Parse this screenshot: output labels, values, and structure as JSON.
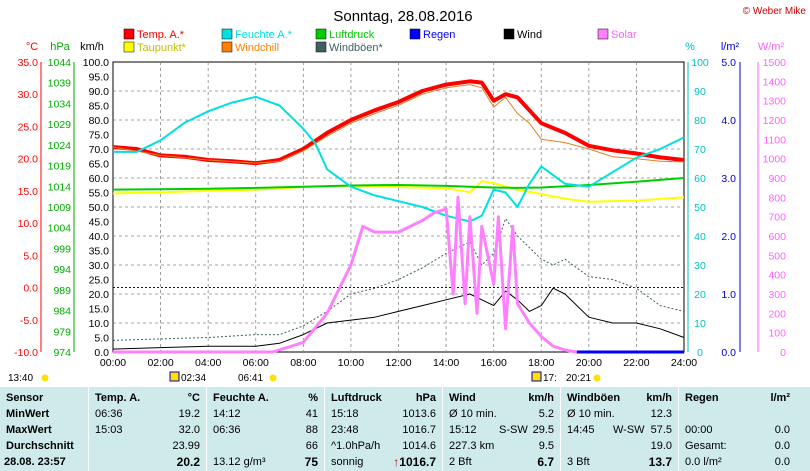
{
  "title": "Sonntag, 28.08.2016",
  "copyright": "© Weber Mike",
  "legend": [
    {
      "label": "Temp. A.*",
      "color": "#ff0000"
    },
    {
      "label": "Feuchte A.*",
      "color": "#00e0e0"
    },
    {
      "label": "Luftdruck",
      "color": "#00cc00"
    },
    {
      "label": "Regen",
      "color": "#0000ff"
    },
    {
      "label": "Wind",
      "color": "#000000"
    },
    {
      "label": "Solar",
      "color": "#ff80ff"
    },
    {
      "label": "Taupunkt*",
      "color": "#ffff00"
    },
    {
      "label": "Windchill",
      "color": "#ff8000"
    },
    {
      "label": "Windböen*",
      "color": "#406060"
    }
  ],
  "axis_units": {
    "temp": "°C",
    "press": "hPa",
    "wind": "km/h",
    "hum": "%",
    "rain": "l/m²",
    "solar": "W/m²"
  },
  "sun_times": {
    "left": "13:40",
    "sunrise": "02:34",
    "rise_time": "06:41",
    "sunset": "17:",
    "set_time": "20:21"
  },
  "chart_data": {
    "type": "line",
    "x_axis": {
      "range": [
        0,
        24
      ],
      "unit": "hours",
      "ticks": [
        "00:00",
        "02:00",
        "04:00",
        "06:00",
        "08:00",
        "10:00",
        "12:00",
        "14:00",
        "16:00",
        "18:00",
        "20:00",
        "22:00",
        "24:00"
      ]
    },
    "axes": {
      "temp": {
        "range": [
          -10,
          35
        ],
        "ticks": [
          "35.0",
          "30.0",
          "25.0",
          "20.0",
          "15.0",
          "10.0",
          "5.0",
          "0.0",
          "-5.0",
          "-10.0"
        ]
      },
      "press": {
        "range": [
          974,
          1044
        ],
        "ticks": [
          "1044",
          "1039",
          "1034",
          "1029",
          "1024",
          "1019",
          "1014",
          "1009",
          "1004",
          "999",
          "994",
          "989",
          "984",
          "979",
          "974"
        ]
      },
      "wind": {
        "range": [
          0,
          100
        ],
        "ticks": [
          "100.0",
          "95.0",
          "90.0",
          "85.0",
          "80.0",
          "75.0",
          "70.0",
          "65.0",
          "60.0",
          "55.0",
          "50.0",
          "45.0",
          "40.0",
          "35.0",
          "30.0",
          "25.0",
          "20.0",
          "15.0",
          "10.0",
          "5.0",
          "0.0"
        ]
      },
      "hum": {
        "range": [
          0,
          100
        ],
        "ticks": [
          "100",
          "90",
          "80",
          "70",
          "60",
          "50",
          "40",
          "30",
          "20",
          "10",
          "0"
        ]
      },
      "rain": {
        "range": [
          0,
          5
        ],
        "ticks": [
          "5.0",
          "4.0",
          "3.0",
          "2.0",
          "1.0",
          "0.0"
        ]
      },
      "solar": {
        "range": [
          0,
          1500
        ],
        "ticks": [
          "1500",
          "1400",
          "1300",
          "1200",
          "1100",
          "1000",
          "900",
          "800",
          "700",
          "600",
          "500",
          "400",
          "300",
          "200",
          "100",
          "0"
        ]
      }
    },
    "series": [
      {
        "name": "Temp. A.*",
        "axis": "temp",
        "color": "#ff0000",
        "width": 4,
        "points": [
          [
            0,
            21.8
          ],
          [
            1,
            21.5
          ],
          [
            2,
            20.5
          ],
          [
            3,
            20.3
          ],
          [
            4,
            19.8
          ],
          [
            5,
            19.6
          ],
          [
            6,
            19.3
          ],
          [
            7,
            19.8
          ],
          [
            8,
            21.5
          ],
          [
            9,
            24
          ],
          [
            10,
            26
          ],
          [
            11,
            27.5
          ],
          [
            12,
            28.8
          ],
          [
            13,
            30.5
          ],
          [
            14,
            31.5
          ],
          [
            15,
            32
          ],
          [
            15.5,
            31.8
          ],
          [
            16,
            29
          ],
          [
            16.5,
            30
          ],
          [
            17,
            29.5
          ],
          [
            17.5,
            27.5
          ],
          [
            18,
            25.5
          ],
          [
            19,
            24
          ],
          [
            20,
            22
          ],
          [
            21,
            21.3
          ],
          [
            22,
            20.8
          ],
          [
            23,
            20.2
          ],
          [
            24,
            19.8
          ]
        ]
      },
      {
        "name": "Windchill",
        "axis": "temp",
        "color": "#e08020",
        "width": 1,
        "points": [
          [
            0,
            21.8
          ],
          [
            2,
            20.5
          ],
          [
            4,
            19.8
          ],
          [
            6,
            19.3
          ],
          [
            7,
            19.6
          ],
          [
            8,
            21.2
          ],
          [
            9,
            23.5
          ],
          [
            10,
            25.5
          ],
          [
            11,
            27
          ],
          [
            12,
            28.3
          ],
          [
            13,
            30
          ],
          [
            14,
            31
          ],
          [
            15,
            31.5
          ],
          [
            15.5,
            31
          ],
          [
            16,
            28
          ],
          [
            16.5,
            29.5
          ],
          [
            17,
            27
          ],
          [
            17.5,
            25.5
          ],
          [
            18,
            23
          ],
          [
            19,
            22.5
          ],
          [
            20,
            21.5
          ],
          [
            21,
            20.3
          ],
          [
            22,
            20
          ],
          [
            23,
            19.6
          ],
          [
            24,
            19.5
          ]
        ]
      },
      {
        "name": "Taupunkt*",
        "axis": "temp",
        "color": "#ffff00",
        "width": 2,
        "points": [
          [
            0,
            14.6
          ],
          [
            2,
            14.8
          ],
          [
            4,
            15.0
          ],
          [
            6,
            15.2
          ],
          [
            8,
            15.6
          ],
          [
            10,
            15.8
          ],
          [
            12,
            15.6
          ],
          [
            14,
            15.4
          ],
          [
            15,
            14.8
          ],
          [
            15.5,
            16.5
          ],
          [
            16,
            16.2
          ],
          [
            17,
            15.2
          ],
          [
            18,
            14.5
          ],
          [
            19,
            13.8
          ],
          [
            20,
            13.3
          ],
          [
            22,
            13.5
          ],
          [
            24,
            14.0
          ]
        ]
      },
      {
        "name": "Luftdruck",
        "axis": "press",
        "color": "#00cc00",
        "width": 2,
        "points": [
          [
            0,
            1013.2
          ],
          [
            2,
            1013.3
          ],
          [
            4,
            1013.4
          ],
          [
            6,
            1013.6
          ],
          [
            8,
            1013.9
          ],
          [
            10,
            1014.2
          ],
          [
            12,
            1014.3
          ],
          [
            14,
            1014.1
          ],
          [
            15,
            1013.9
          ],
          [
            16,
            1013.7
          ],
          [
            17,
            1013.6
          ],
          [
            18,
            1013.7
          ],
          [
            20,
            1014.3
          ],
          [
            22,
            1015.1
          ],
          [
            24,
            1016.0
          ]
        ]
      },
      {
        "name": "Feuchte A.*",
        "axis": "hum",
        "color": "#00e0e0",
        "width": 2,
        "points": [
          [
            0,
            69
          ],
          [
            1,
            69
          ],
          [
            2,
            73
          ],
          [
            3,
            79
          ],
          [
            4,
            83
          ],
          [
            5,
            86
          ],
          [
            6,
            88
          ],
          [
            7,
            85
          ],
          [
            8,
            77
          ],
          [
            8.5,
            72
          ],
          [
            9,
            63
          ],
          [
            10,
            57
          ],
          [
            11,
            54
          ],
          [
            12,
            52
          ],
          [
            13,
            50
          ],
          [
            14,
            47
          ],
          [
            15,
            45
          ],
          [
            15.5,
            47
          ],
          [
            16,
            56
          ],
          [
            16.5,
            55
          ],
          [
            17,
            50
          ],
          [
            17.5,
            58
          ],
          [
            18,
            64
          ],
          [
            19,
            58
          ],
          [
            20,
            57
          ],
          [
            21,
            62
          ],
          [
            22,
            67
          ],
          [
            23,
            70
          ],
          [
            24,
            74
          ]
        ]
      },
      {
        "name": "Windböen*",
        "axis": "wind",
        "color": "#406060",
        "width": 1,
        "dashed": true,
        "points": [
          [
            0,
            4
          ],
          [
            2,
            4.5
          ],
          [
            4,
            5
          ],
          [
            6,
            6
          ],
          [
            7,
            6
          ],
          [
            8,
            9
          ],
          [
            9,
            14
          ],
          [
            10,
            20
          ],
          [
            11,
            22
          ],
          [
            12,
            25
          ],
          [
            13,
            29
          ],
          [
            14,
            34
          ],
          [
            15,
            38
          ],
          [
            15.5,
            30
          ],
          [
            16,
            34
          ],
          [
            16.5,
            46
          ],
          [
            17,
            40
          ],
          [
            17.5,
            36
          ],
          [
            18,
            32
          ],
          [
            18.5,
            30
          ],
          [
            19,
            32
          ],
          [
            20,
            26
          ],
          [
            21,
            25
          ],
          [
            22,
            22
          ],
          [
            23,
            16
          ],
          [
            24,
            14
          ]
        ]
      },
      {
        "name": "Wind",
        "axis": "wind",
        "color": "#000000",
        "width": 1,
        "points": [
          [
            0,
            1
          ],
          [
            2,
            1.5
          ],
          [
            4,
            2
          ],
          [
            6,
            2
          ],
          [
            7,
            3
          ],
          [
            8,
            6
          ],
          [
            9,
            10
          ],
          [
            10,
            11
          ],
          [
            11,
            12
          ],
          [
            12,
            14
          ],
          [
            13,
            16
          ],
          [
            14,
            18
          ],
          [
            15,
            20
          ],
          [
            15.5,
            18
          ],
          [
            16,
            16
          ],
          [
            16.5,
            21
          ],
          [
            17,
            18
          ],
          [
            17.5,
            14
          ],
          [
            18,
            16
          ],
          [
            18.5,
            22
          ],
          [
            19,
            20
          ],
          [
            20,
            12
          ],
          [
            21,
            10
          ],
          [
            22,
            10
          ],
          [
            23,
            8
          ],
          [
            24,
            5
          ]
        ]
      },
      {
        "name": "Solar",
        "axis": "solar",
        "color": "#ff80ff",
        "width": 3,
        "points": [
          [
            0,
            0
          ],
          [
            6.7,
            0
          ],
          [
            7.5,
            30
          ],
          [
            8,
            50
          ],
          [
            9,
            200
          ],
          [
            10,
            450
          ],
          [
            10.5,
            650
          ],
          [
            11,
            620
          ],
          [
            12,
            620
          ],
          [
            13,
            680
          ],
          [
            13.5,
            720
          ],
          [
            14,
            740
          ],
          [
            14.3,
            300
          ],
          [
            14.5,
            800
          ],
          [
            14.8,
            250
          ],
          [
            15,
            700
          ],
          [
            15.3,
            200
          ],
          [
            15.5,
            650
          ],
          [
            16,
            350
          ],
          [
            16.2,
            700
          ],
          [
            16.5,
            120
          ],
          [
            16.8,
            650
          ],
          [
            17,
            250
          ],
          [
            17.5,
            150
          ],
          [
            18,
            80
          ],
          [
            18.5,
            30
          ],
          [
            19,
            10
          ],
          [
            19.5,
            0
          ],
          [
            24,
            0
          ]
        ]
      },
      {
        "name": "Regen",
        "axis": "rain",
        "color": "#0000ff",
        "width": 3,
        "points": [
          [
            19.5,
            0
          ],
          [
            24,
            0
          ]
        ]
      }
    ]
  },
  "stats": {
    "headers": {
      "sensor": "Sensor",
      "temp": "Temp. A.",
      "temp_u": "°C",
      "hum": "Feuchte A.",
      "hum_u": "%",
      "press": "Luftdruck",
      "press_u": "hPa",
      "wind": "Wind",
      "wind_u": "km/h",
      "gust": "Windböen",
      "gust_u": "km/h",
      "rain": "Regen",
      "rain_u": "l/m²"
    },
    "row_labels": {
      "min": "MinWert",
      "max": "MaxWert",
      "avg": "Durchschnitt",
      "cur": "28.08. 23:57"
    },
    "temp": {
      "min_t": "06:36",
      "min": "19.2",
      "max_t": "15:03",
      "max": "32.0",
      "avg": "23.99",
      "cur": "20.2"
    },
    "hum": {
      "min_t": "14:12",
      "min": "41",
      "max_t": "06:36",
      "max": "88",
      "avg": "66",
      "abs": "13.12 g/m³",
      "cur": "75"
    },
    "press": {
      "min_t": "15:18",
      "min": "1013.6",
      "max_t": "23:48",
      "max": "1016.7",
      "trend": "^1.0hPa/h",
      "avg": "1014.6",
      "forecast": "sonnig",
      "arrow": "↑",
      "cur": "1016.7"
    },
    "wind": {
      "a_lbl": "Ø 10 min.",
      "a_val": "5.2",
      "b_t": "15:12",
      "b_dir": "S-SW",
      "b_val": "29.5",
      "c_lbl": "227.3 km",
      "c_val": "9.5",
      "bft": "2 Bft",
      "cur": "6.7"
    },
    "gust": {
      "a_lbl": "Ø 10 min.",
      "a_val": "12.3",
      "b_t": "14:45",
      "b_dir": "W-SW",
      "b_val": "57.5",
      "c_val": "19.0",
      "bft": "3 Bft",
      "cur": "13.7"
    },
    "rain": {
      "b_t": "00:00",
      "b_val": "0.0",
      "c_lbl": "Gesamt:",
      "c_val": "0.0",
      "cur": "0.0 l/m²",
      "cur2": "0.0"
    }
  }
}
